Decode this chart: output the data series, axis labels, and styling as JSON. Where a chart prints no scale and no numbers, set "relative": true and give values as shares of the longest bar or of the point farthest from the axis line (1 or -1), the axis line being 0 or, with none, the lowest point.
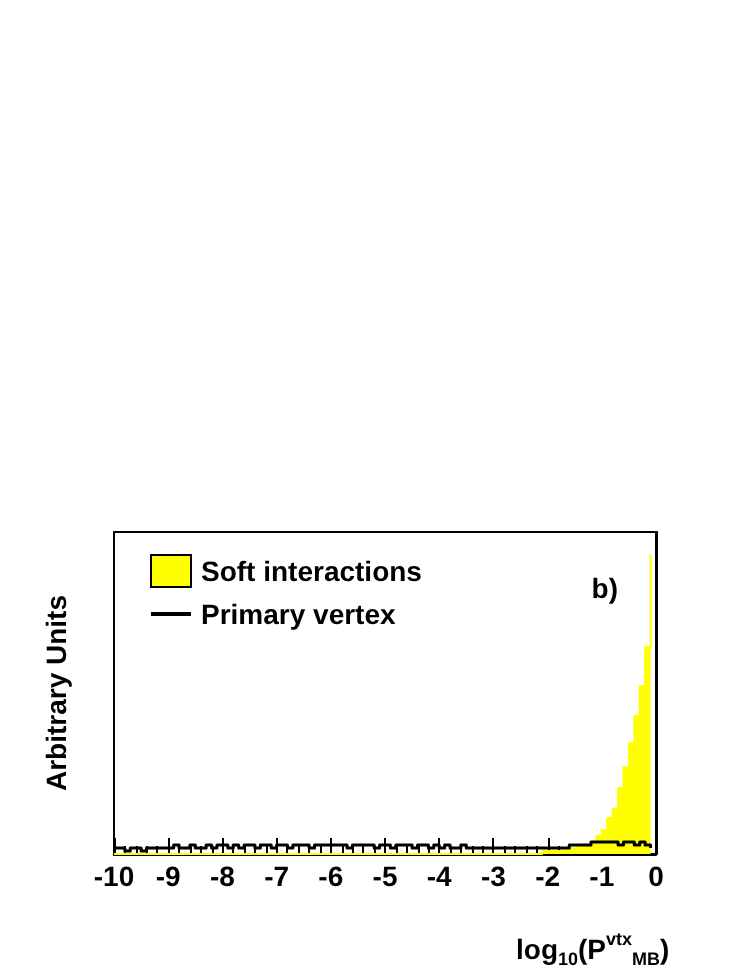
{
  "chart_data": {
    "type": "step",
    "xlabel": "log$_{10}$(P$^{vtx}$$_{MB}$)",
    "ylabel": "Arbitrary Units",
    "annotations": [
      "b)"
    ],
    "relative": true,
    "tick_labels": "x",
    "legend": "top left",
    "xlim": [
      -10,
      0
    ],
    "xticks": [
      -10,
      -9,
      -8,
      -7,
      -6,
      -5,
      -4,
      -3,
      -2,
      -1,
      0
    ],
    "x": [
      -10,
      -9.9,
      -9.8,
      -9.7,
      -9.6,
      -9.5,
      -9.4,
      -9.3,
      -9.2,
      -9.1,
      -9,
      -8.9,
      -8.8,
      -8.7,
      -8.6,
      -8.5,
      -8.4,
      -8.3,
      -8.2,
      -8.1,
      -8,
      -7.9,
      -7.8,
      -7.7,
      -7.6,
      -7.5,
      -7.4,
      -7.3,
      -7.2,
      -7.1,
      -7,
      -6.9,
      -6.8,
      -6.7,
      -6.6,
      -6.5,
      -6.4,
      -6.3,
      -6.2,
      -6.1,
      -6,
      -5.9,
      -5.8,
      -5.7,
      -5.6,
      -5.5,
      -5.4,
      -5.3,
      -5.2,
      -5.1,
      -5,
      -4.9,
      -4.8,
      -4.7,
      -4.6,
      -4.5,
      -4.4,
      -4.3,
      -4.2,
      -4.1,
      -4,
      -3.9,
      -3.8,
      -3.7,
      -3.6,
      -3.5,
      -3.4,
      -3.3,
      -3.2,
      -3.1,
      -3,
      -2.9,
      -2.8,
      -2.7,
      -2.6,
      -2.5,
      -2.4,
      -2.3,
      -2.2,
      -2.1,
      -2,
      -1.9,
      -1.8,
      -1.7,
      -1.6,
      -1.5,
      -1.4,
      -1.3,
      -1.2,
      -1.1,
      -1,
      -0.9,
      -0.8,
      -0.7,
      -0.6,
      -0.5,
      -0.4,
      -0.3,
      -0.2,
      -0.1
    ],
    "series": [
      {
        "name": "Soft interactions",
        "type": "area",
        "color": "#ffff00",
        "values": [
          0,
          0,
          0,
          0,
          0,
          0,
          0,
          0,
          0,
          0,
          0,
          0,
          0,
          0,
          0,
          0,
          0,
          0,
          0,
          0,
          0,
          0,
          0,
          0,
          0,
          0,
          0,
          0,
          0,
          0,
          0,
          0,
          0,
          0,
          0,
          0,
          0,
          0,
          0,
          0,
          0,
          0,
          0,
          0,
          0,
          0,
          0,
          0,
          0,
          0,
          0,
          0,
          0,
          0,
          0,
          0,
          0,
          0,
          0,
          0,
          0,
          0,
          0,
          0,
          0,
          0,
          0,
          0,
          0,
          0,
          0,
          0,
          0,
          0,
          0,
          0,
          0,
          0,
          0,
          0.01,
          0.01,
          0.01,
          0.01,
          0.02,
          0.02,
          0.02,
          0.03,
          0.03,
          0.04,
          0.06,
          0.08,
          0.12,
          0.15,
          0.22,
          0.29,
          0.37,
          0.46,
          0.56,
          0.69,
          1
        ]
      },
      {
        "name": "Primary vertex",
        "color": "#000000",
        "values": [
          0.02,
          0.02,
          0.01,
          0.02,
          0.02,
          0.01,
          0.02,
          0.02,
          0.02,
          0.02,
          0.02,
          0.03,
          0.02,
          0.02,
          0.03,
          0.02,
          0.02,
          0.03,
          0.02,
          0.03,
          0.03,
          0.02,
          0.03,
          0.02,
          0.03,
          0.03,
          0.02,
          0.03,
          0.03,
          0.02,
          0.03,
          0.03,
          0.02,
          0.03,
          0.03,
          0.03,
          0.02,
          0.03,
          0.03,
          0.03,
          0.03,
          0.03,
          0.03,
          0.02,
          0.03,
          0.03,
          0.03,
          0.03,
          0.02,
          0.03,
          0.03,
          0.02,
          0.03,
          0.03,
          0.03,
          0.02,
          0.03,
          0.03,
          0.02,
          0.03,
          0.02,
          0.03,
          0.02,
          0.02,
          0.03,
          0.02,
          0.02,
          0.02,
          0.02,
          0.02,
          0.02,
          0.02,
          0.02,
          0.02,
          0.02,
          0.02,
          0.02,
          0.02,
          0.02,
          0.02,
          0.02,
          0.02,
          0.02,
          0.02,
          0.03,
          0.03,
          0.03,
          0.03,
          0.04,
          0.04,
          0.04,
          0.04,
          0.04,
          0.03,
          0.04,
          0.04,
          0.03,
          0.04,
          0.03,
          0.02
        ]
      }
    ]
  }
}
